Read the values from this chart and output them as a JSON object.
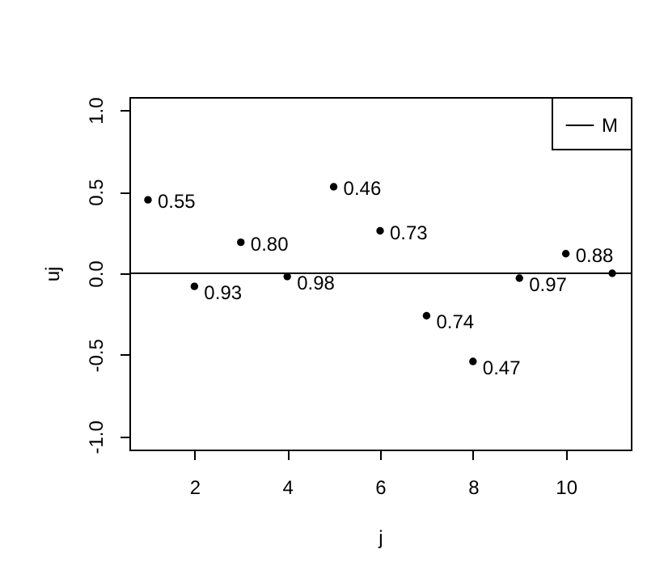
{
  "chart_data": {
    "type": "scatter",
    "xlabel": "j",
    "ylabel": "uj",
    "x": [
      1,
      2,
      3,
      4,
      5,
      6,
      7,
      8,
      9,
      10,
      11
    ],
    "values": [
      0.45,
      -0.08,
      0.19,
      -0.02,
      0.53,
      0.26,
      -0.26,
      -0.54,
      -0.03,
      0.12,
      0.0
    ],
    "color": "#000000",
    "marker": "circle",
    "xlim": [
      0.6,
      11.4
    ],
    "xticks": [
      2,
      4,
      6,
      8,
      10
    ],
    "ylim": [
      -1.08,
      1.08
    ],
    "yticks": [
      {
        "value": -1,
        "label": "-1.0"
      },
      {
        "value": -0.5,
        "label": "-0.5"
      },
      {
        "value": 0,
        "label": "0.0"
      },
      {
        "value": 0.5,
        "label": "0.5"
      },
      {
        "value": 1,
        "label": "1.0"
      }
    ],
    "ref_lines": [
      {
        "axis": "y",
        "value": 0,
        "label": "M",
        "color": "#000000"
      }
    ],
    "annotations": [
      {
        "text": "0.55",
        "x": 1,
        "y": 0.45
      },
      {
        "text": "0.93",
        "x": 2,
        "y": -0.08
      },
      {
        "text": "0.80",
        "x": 3,
        "y": 0.19
      },
      {
        "text": "0.98",
        "x": 4,
        "y": -0.02
      },
      {
        "text": "0.46",
        "x": 5,
        "y": 0.53
      },
      {
        "text": "0.73",
        "x": 6,
        "y": 0.26
      },
      {
        "text": "0.74",
        "x": 7,
        "y": -0.26
      },
      {
        "text": "0.47",
        "x": 8,
        "y": -0.54
      },
      {
        "text": "0.97",
        "x": 9,
        "y": -0.03
      },
      {
        "text": "0.88",
        "x": 10,
        "y": 0.12
      }
    ],
    "legend": "top right",
    "grid": false
  }
}
